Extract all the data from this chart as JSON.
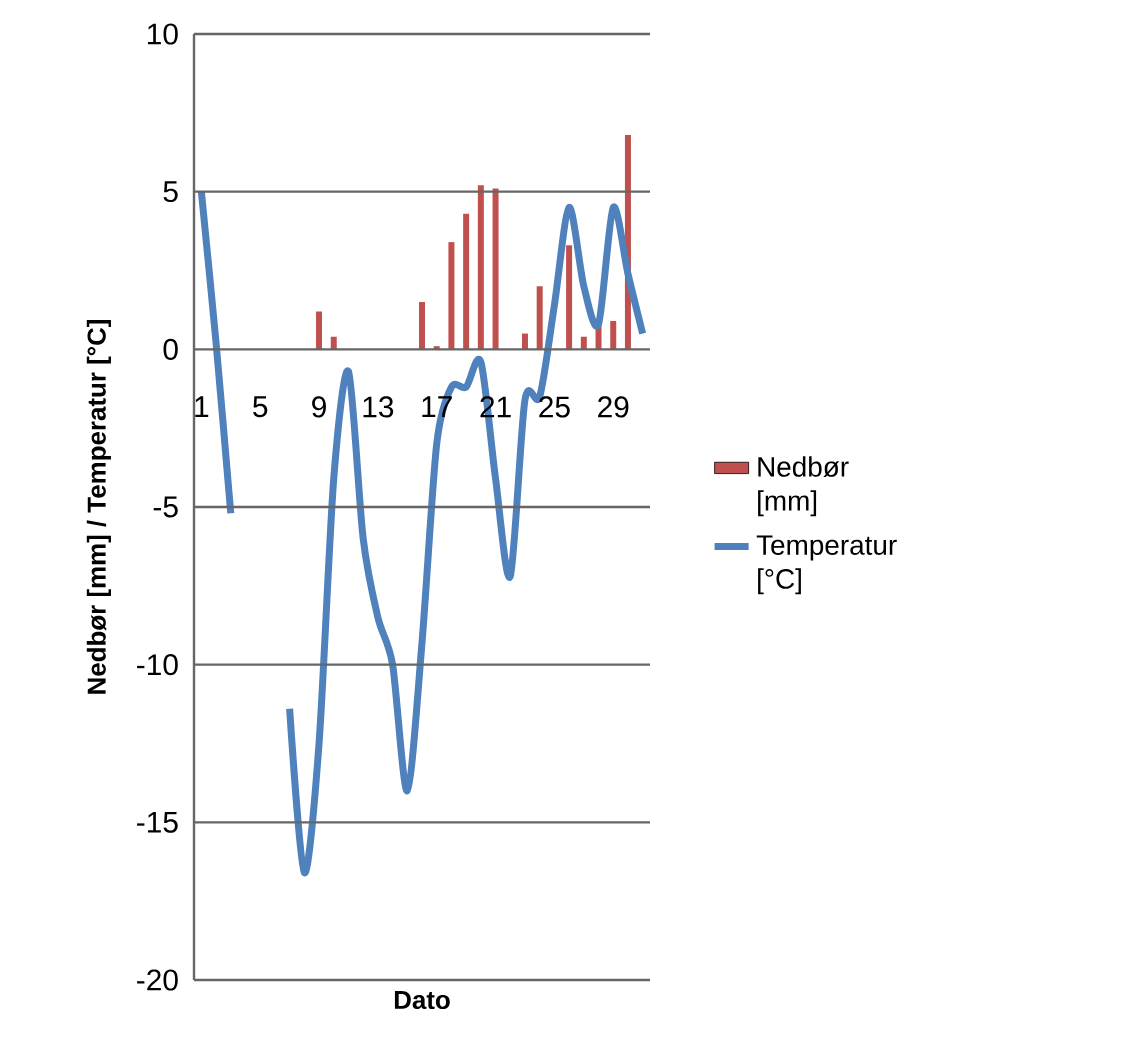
{
  "chart_data": {
    "type": "bar",
    "xlabel": "Dato",
    "ylabel": "Nedbør [mm] / Temperatur [°C]",
    "categories": [
      "1",
      null,
      null,
      null,
      "5",
      null,
      null,
      null,
      "9",
      null,
      null,
      null,
      "13",
      null,
      null,
      null,
      "17",
      null,
      null,
      null,
      "21",
      null,
      null,
      null,
      "25",
      null,
      null,
      null,
      "29",
      null,
      null
    ],
    "series": [
      {
        "name": "Nedbør [mm]",
        "color": "#c0504d",
        "values": [
          0,
          0,
          0,
          0,
          0,
          0,
          0,
          0,
          1.2,
          0.4,
          0,
          0,
          0,
          0,
          0,
          1.5,
          0.1,
          3.4,
          4.3,
          5.2,
          5.1,
          0,
          0.5,
          2.0,
          0,
          3.3,
          0.4,
          0.8,
          0.9,
          6.8,
          0
        ]
      },
      {
        "name": "Temperatur [°C]",
        "type": "line",
        "color": "#4f81bd",
        "values": [
          5.0,
          0.2,
          -5.2,
          null,
          null,
          null,
          -11.4,
          -16.6,
          -12.5,
          -4.1,
          -0.7,
          -6.0,
          -8.5,
          -10.0,
          -14.0,
          -9.3,
          -3.0,
          -1.2,
          -1.2,
          -0.4,
          -4.1,
          -7.2,
          -1.6,
          -1.5,
          1.4,
          4.5,
          2.0,
          0.8,
          4.5,
          2.4,
          0.5
        ]
      }
    ],
    "ylim": [
      -20,
      10
    ],
    "yticks": [
      -20,
      -15,
      -10,
      -5,
      0,
      5,
      10
    ],
    "grid": "y",
    "legend": "right"
  }
}
